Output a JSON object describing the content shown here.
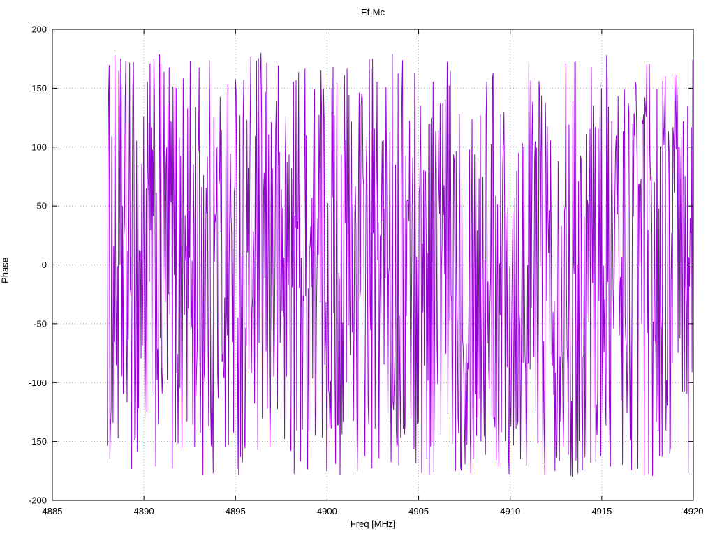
{
  "chart_data": {
    "type": "line",
    "title": "Ef-Mc",
    "xlabel": "Freq [MHz]",
    "ylabel": "Phase",
    "xlim": [
      4885,
      4920
    ],
    "ylim": [
      -200,
      200
    ],
    "x_ticks": [
      4885,
      4890,
      4895,
      4900,
      4905,
      4910,
      4915,
      4920
    ],
    "y_ticks": [
      -200,
      -150,
      -100,
      -50,
      0,
      50,
      100,
      150,
      200
    ],
    "grid": true,
    "grid_style": "dotted",
    "legend_position": "none",
    "background_color": "#ffffff",
    "border_color": "#000000",
    "grid_color": "#999999",
    "series": [
      {
        "name": "Ef-Mc",
        "color": "#9400d3",
        "style": "solid-line",
        "description": "Wrapped visibility phase vs frequency; noise-like, uniformly scattered between -180 and +180 degrees, points connected by lines producing a dense vertical zigzag fill",
        "x_start": 4888.0,
        "x_end": 4920.0,
        "n_points": 920,
        "y_min": -180,
        "y_max": 180,
        "seed": 1234
      }
    ]
  }
}
